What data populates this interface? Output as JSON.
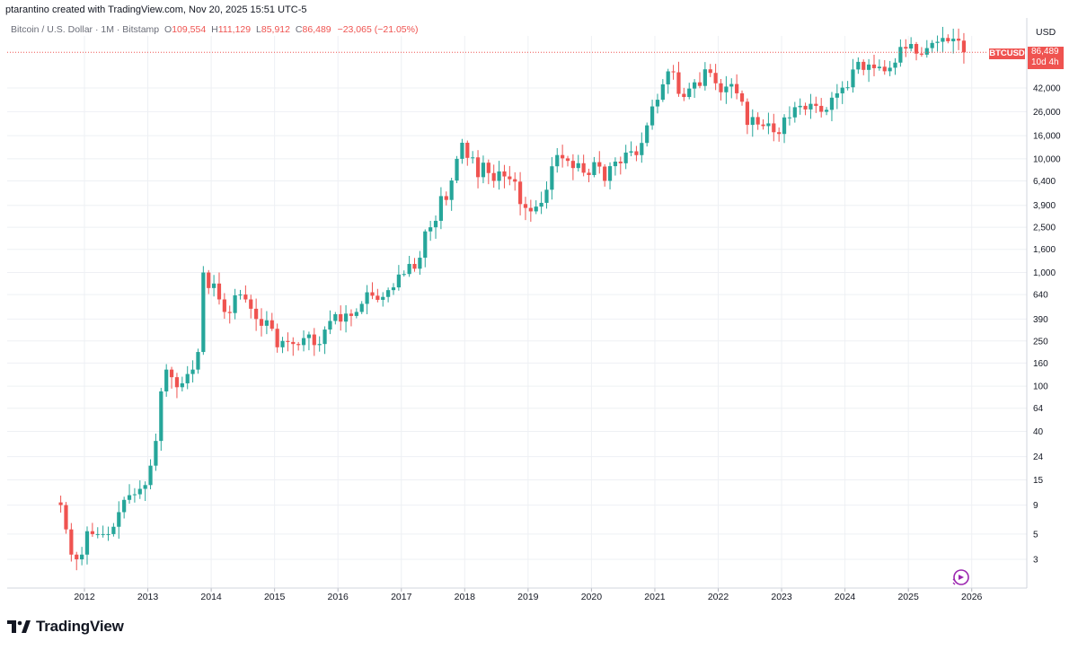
{
  "header": {
    "caption": "ptarantino created with TradingView.com, Nov 20, 2025 15:51 UTC-5"
  },
  "legend": {
    "symbol_desc": "Bitcoin / U.S. Dollar · 1M · Bitstamp",
    "o_label": "O",
    "o_value": "109,554",
    "h_label": "H",
    "h_value": "111,129",
    "l_label": "L",
    "l_value": "85,912",
    "c_label": "C",
    "c_value": "86,489",
    "change": "−23,065 (−21.05%)"
  },
  "axis": {
    "currency": "USD",
    "symbol_badge": "BTCUSD",
    "last_price": "86,489",
    "countdown": "10d 4h"
  },
  "brand": {
    "name": "TradingView"
  },
  "colors": {
    "up": "#26a69a",
    "down": "#ef5350",
    "grid": "#eef0f4",
    "axis_text": "#131722"
  },
  "chart_data": {
    "type": "candlestick",
    "scale": "log",
    "yticks": [
      3,
      5,
      9,
      15,
      24,
      40,
      64,
      100,
      160,
      250,
      390,
      640,
      1000,
      1600,
      2500,
      3900,
      6400,
      10000,
      16000,
      26000,
      42000
    ],
    "ytick_labels": [
      "3",
      "5",
      "9",
      "15",
      "24",
      "40",
      "64",
      "100",
      "160",
      "250",
      "390",
      "640",
      "1,000",
      "1,600",
      "2,500",
      "3,900",
      "6,400",
      "10,000",
      "16,000",
      "26,000",
      "42,000"
    ],
    "xticks": [
      "2012",
      "2013",
      "2014",
      "2015",
      "2016",
      "2017",
      "2018",
      "2019",
      "2020",
      "2021",
      "2022",
      "2023",
      "2024",
      "2025",
      "2026"
    ],
    "x_range": [
      "2011-08",
      "2026-12"
    ],
    "y_range": [
      1.9,
      180000
    ],
    "last_price": 86489,
    "yearly_path": {
      "2011": [
        9,
        5.5,
        3.3,
        3,
        3.3
      ],
      "2012": [
        5.3,
        5,
        5,
        5,
        5,
        5.8,
        7.8,
        10,
        11,
        11.2,
        12.5,
        13.5
      ],
      "2013": [
        20,
        33,
        90,
        140,
        120,
        98,
        106,
        128,
        140,
        200,
        1000,
        730
      ],
      "2014": [
        800,
        580,
        450,
        440,
        630,
        640,
        580,
        480,
        390,
        340,
        380,
        320
      ],
      "2015": [
        220,
        250,
        245,
        235,
        230,
        265,
        285,
        230,
        235,
        315,
        375,
        430
      ],
      "2016": [
        370,
        435,
        415,
        450,
        530,
        670,
        625,
        575,
        610,
        700,
        740,
        960
      ],
      "2017": [
        970,
        1190,
        1080,
        1350,
        2300,
        2500,
        2850,
        4700,
        4350,
        6450,
        10000,
        13850
      ],
      "2018": [
        10200,
        10300,
        6900,
        9250,
        7500,
        6400,
        7750,
        7000,
        6620,
        6300,
        4000,
        3700
      ],
      "2019": [
        3450,
        3800,
        4100,
        5350,
        8600,
        10800,
        10100,
        9600,
        8300,
        9150,
        7550,
        7200
      ],
      "2020": [
        9350,
        8550,
        6400,
        8620,
        9450,
        9140,
        11350,
        11650,
        10780,
        13800,
        19700,
        28900
      ],
      "2021": [
        33100,
        45200,
        58800,
        57700,
        37300,
        35000,
        41500,
        47100,
        43800,
        61300,
        57000,
        46200
      ],
      "2022": [
        38500,
        43200,
        45500,
        37700,
        31800,
        19900,
        23300,
        20050,
        19420,
        20500,
        17150,
        16550
      ],
      "2023": [
        23130,
        23150,
        28450,
        29250,
        27200,
        30470,
        29230,
        25940,
        26970,
        34500,
        37700,
        42300
      ],
      "2024": [
        42600,
        61100,
        71300,
        60600,
        67500,
        62700,
        64600,
        58950,
        63300,
        70200,
        96400,
        93400
      ],
      "2025": [
        102400,
        84300,
        82500,
        94200,
        104600,
        107100,
        115700,
        108200,
        114000,
        109554,
        86489
      ]
    }
  }
}
